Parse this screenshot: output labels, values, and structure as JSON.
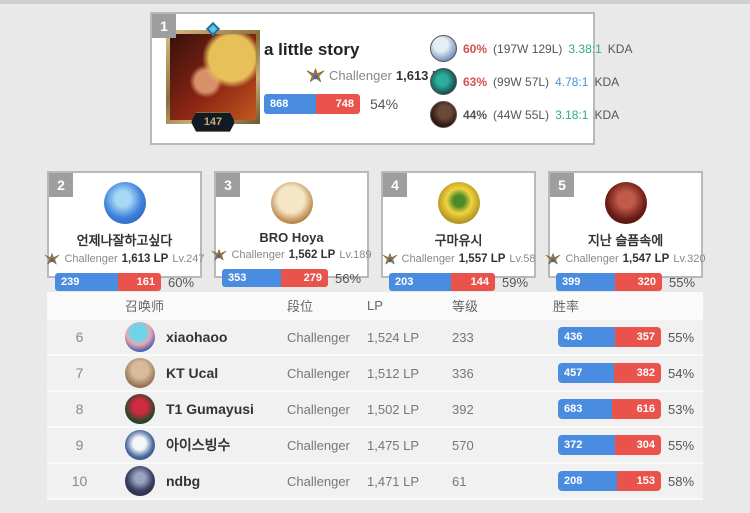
{
  "colors": {
    "bar_win_blue": "#4a8ce0",
    "bar_loss_red": "#e9534b",
    "winrate_red": "#d0534c",
    "kda_green": "#2dab87",
    "kda_blue": "#4a90d9",
    "neutral_text": "#555555"
  },
  "top_player": {
    "rank": "1",
    "level": "147",
    "name": "a little story",
    "tier": "Challenger",
    "lp": "1,613 LP",
    "wins": "868",
    "losses": "748",
    "winrate": "54%",
    "champions": [
      {
        "winrate": "60%",
        "winrate_color": "#d0534c",
        "record": "(197W 129L)",
        "kda": "3.38:1",
        "kda_color": "#2dab87",
        "kda_label": "KDA"
      },
      {
        "winrate": "63%",
        "winrate_color": "#d0534c",
        "record": "(99W 57L)",
        "kda": "4.78:1",
        "kda_color": "#4a90d9",
        "kda_label": "KDA"
      },
      {
        "winrate": "44%",
        "winrate_color": "#555555",
        "record": "(44W 55L)",
        "kda": "3.18:1",
        "kda_color": "#2dab87",
        "kda_label": "KDA"
      }
    ]
  },
  "cards": [
    {
      "rank": "2",
      "name": "언제나잘하고싶다",
      "tier": "Challenger",
      "lp": "1,613 LP",
      "level": "Lv.247",
      "wins": "239",
      "losses": "161",
      "winrate": "60%"
    },
    {
      "rank": "3",
      "name": "BRO Hoya",
      "tier": "Challenger",
      "lp": "1,562 LP",
      "level": "Lv.189",
      "wins": "353",
      "losses": "279",
      "winrate": "56%"
    },
    {
      "rank": "4",
      "name": "구마유시",
      "tier": "Challenger",
      "lp": "1,557 LP",
      "level": "Lv.58",
      "wins": "203",
      "losses": "144",
      "winrate": "59%"
    },
    {
      "rank": "5",
      "name": "지난 슬픔속에",
      "tier": "Challenger",
      "lp": "1,547 LP",
      "level": "Lv.320",
      "wins": "399",
      "losses": "320",
      "winrate": "55%"
    }
  ],
  "table": {
    "headers": {
      "summoner": "召唤师",
      "tier": "段位",
      "lp": "LP",
      "level": "等级",
      "winrate": "胜率"
    },
    "rows": [
      {
        "rank": "6",
        "name": "xiaohaoo",
        "tier": "Challenger",
        "lp": "1,524 LP",
        "level": "233",
        "wins": "436",
        "losses": "357",
        "winrate": "55%"
      },
      {
        "rank": "7",
        "name": "KT Ucal",
        "tier": "Challenger",
        "lp": "1,512 LP",
        "level": "336",
        "wins": "457",
        "losses": "382",
        "winrate": "54%"
      },
      {
        "rank": "8",
        "name": "T1 Gumayusi",
        "tier": "Challenger",
        "lp": "1,502 LP",
        "level": "392",
        "wins": "683",
        "losses": "616",
        "winrate": "53%"
      },
      {
        "rank": "9",
        "name": "아이스빙수",
        "tier": "Challenger",
        "lp": "1,475 LP",
        "level": "570",
        "wins": "372",
        "losses": "304",
        "winrate": "55%"
      },
      {
        "rank": "10",
        "name": "ndbg",
        "tier": "Challenger",
        "lp": "1,471 LP",
        "level": "61",
        "wins": "208",
        "losses": "153",
        "winrate": "58%"
      }
    ]
  }
}
